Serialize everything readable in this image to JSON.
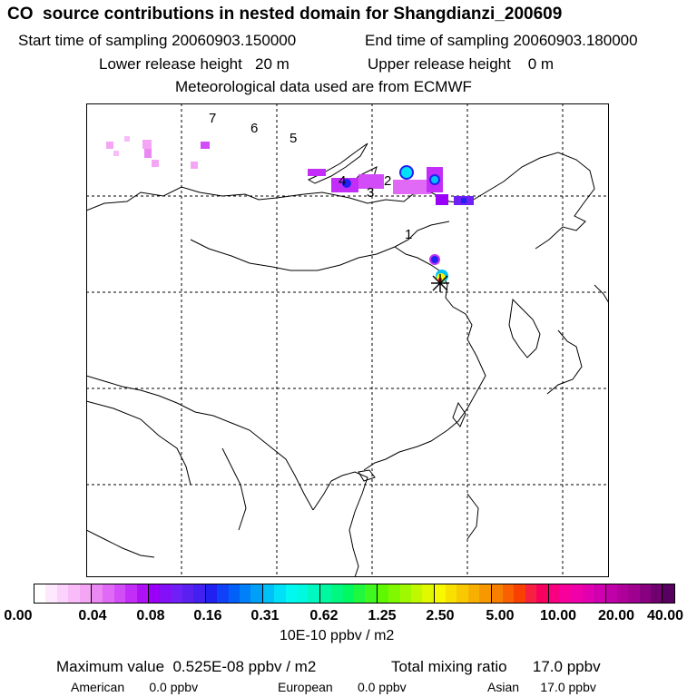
{
  "header": {
    "title": "CO  source contributions in nested domain for Shangdianzi_200609",
    "start_time": "Start time of sampling 20060903.150000",
    "end_time": "End time of sampling 20060903.180000",
    "lower_height": "Lower release height   20 m",
    "upper_height": "Upper release height    0 m",
    "meteo": "Meteorological data used are from ECMWF"
  },
  "map": {
    "trajectory_labels": [
      "1",
      "2",
      "3",
      "4",
      "5",
      "6",
      "7"
    ],
    "receptor_marker": "star-marker",
    "grid": true
  },
  "colorbar": {
    "ticks": [
      "0.00",
      "0.04",
      "0.08",
      "0.16",
      "0.31",
      "0.62",
      "1.25",
      "2.50",
      "5.00",
      "10.00",
      "20.00",
      "40.00"
    ],
    "units": "10E-10 ppbv / m2",
    "colors": [
      "#ffffff",
      "#fde8fd",
      "#fbd2fb",
      "#f8bcf8",
      "#f4a6f4",
      "#ea88f4",
      "#e06af6",
      "#d24cf8",
      "#c22ef8",
      "#b010f6",
      "#9a00f8",
      "#8410f8",
      "#7020f4",
      "#5a20f0",
      "#4420f0",
      "#2020f0",
      "#1040f8",
      "#0060f8",
      "#0080f8",
      "#00a0f8",
      "#00c0f8",
      "#00e0f8",
      "#00f8f0",
      "#00f8e0",
      "#00f8c0",
      "#00f8a0",
      "#00f880",
      "#00f860",
      "#20f840",
      "#40f820",
      "#60f800",
      "#80f800",
      "#a0f800",
      "#c0f800",
      "#e0f800",
      "#f8f800",
      "#f8e000",
      "#f8c800",
      "#f8b000",
      "#f89800",
      "#f88000",
      "#f86000",
      "#f84000",
      "#f82040",
      "#f80060",
      "#f80080",
      "#f8009c",
      "#f000a8",
      "#e000b0",
      "#d000b0",
      "#c000a8",
      "#b0009c",
      "#a00090",
      "#880080",
      "#700070",
      "#580060"
    ]
  },
  "footer": {
    "max_value": "Maximum value  0.525E-08 ppbv / m2",
    "total_mixing": "Total mixing ratio      17.0 ppbv",
    "american": "American       0.0 ppbv",
    "european": "European       0.0 ppbv",
    "asian": "Asian      17.0 ppbv"
  }
}
